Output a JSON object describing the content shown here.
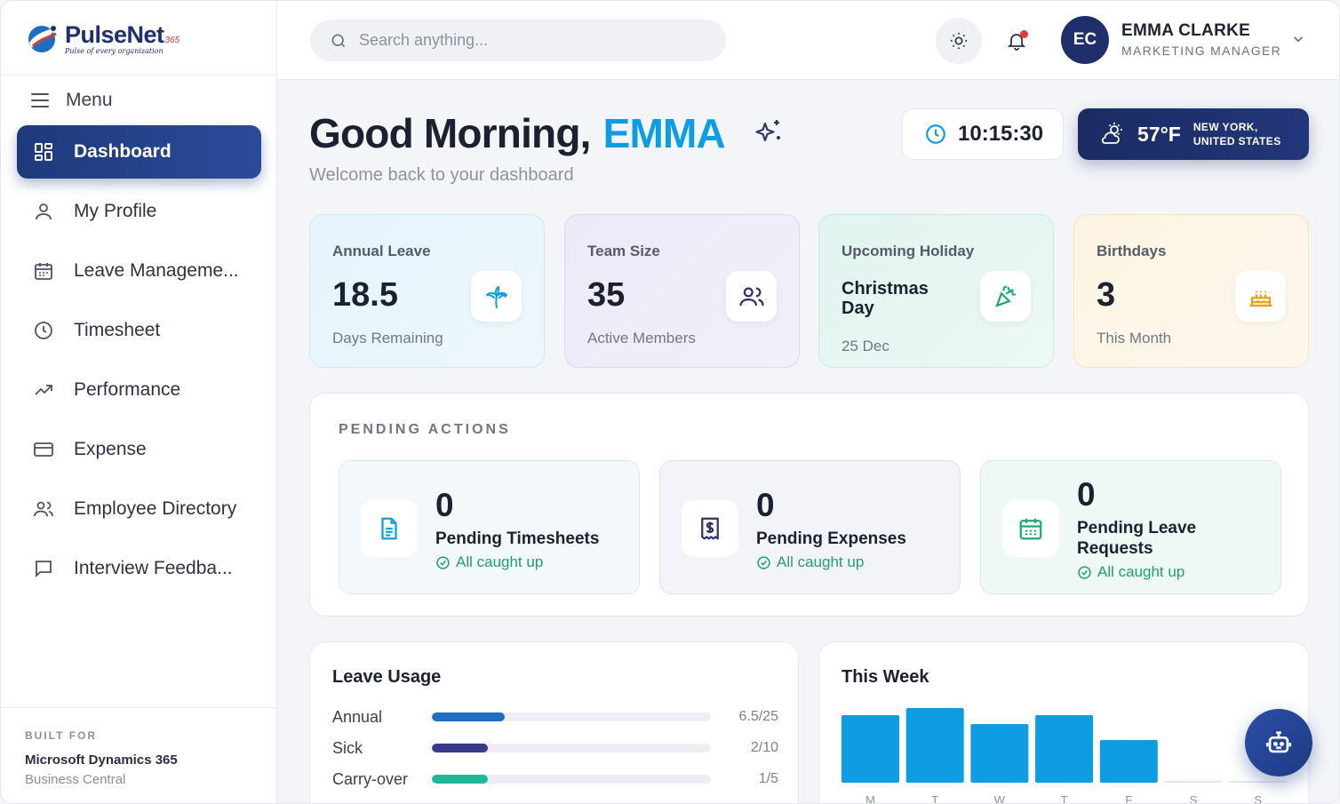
{
  "brand": {
    "name": "PulseNet",
    "suffix": "365",
    "tagline": "Pulse of every organization"
  },
  "sidebar": {
    "menu_label": "Menu",
    "items": [
      {
        "label": "Dashboard",
        "icon": "grid-icon",
        "active": true
      },
      {
        "label": "My Profile",
        "icon": "user-icon"
      },
      {
        "label": "Leave Manageme...",
        "icon": "calendar-icon"
      },
      {
        "label": "Timesheet",
        "icon": "clock-icon"
      },
      {
        "label": "Performance",
        "icon": "trending-up-icon"
      },
      {
        "label": "Expense",
        "icon": "credit-card-icon"
      },
      {
        "label": "Employee Directory",
        "icon": "users-icon"
      },
      {
        "label": "Interview Feedba...",
        "icon": "message-square-icon"
      }
    ],
    "footer": {
      "built_for": "BUILT FOR",
      "product": "Microsoft Dynamics 365",
      "module": "Business Central"
    }
  },
  "header": {
    "search_placeholder": "Search anything...",
    "user": {
      "initials": "EC",
      "name": "EMMA CLARKE",
      "role": "MARKETING MANAGER"
    }
  },
  "greeting": {
    "prefix": "Good Morning,",
    "name": "EMMA",
    "subtitle": "Welcome back to your dashboard"
  },
  "clock": {
    "time": "10:15:30"
  },
  "weather": {
    "temp": "57°F",
    "city": "NEW YORK,",
    "country": "UNITED STATES"
  },
  "stats": [
    {
      "title": "Annual Leave",
      "value": "18.5",
      "sub": "Days Remaining",
      "icon": "palm-tree-icon",
      "accent": "#0e9de3"
    },
    {
      "title": "Team Size",
      "value": "35",
      "sub": "Active Members",
      "icon": "users-icon",
      "accent": "#2e3566"
    },
    {
      "title": "Upcoming Holiday",
      "value": "Christmas Day",
      "sub": "25 Dec",
      "icon": "party-popper-icon",
      "accent": "#1fa776"
    },
    {
      "title": "Birthdays",
      "value": "3",
      "sub": "This Month",
      "icon": "cake-icon",
      "accent": "#e9a21b"
    }
  ],
  "pending": {
    "title": "PENDING ACTIONS",
    "items": [
      {
        "count": "0",
        "label": "Pending Timesheets",
        "status": "All caught up",
        "icon": "file-text-icon"
      },
      {
        "count": "0",
        "label": "Pending Expenses",
        "status": "All caught up",
        "icon": "receipt-dollar-icon"
      },
      {
        "count": "0",
        "label": "Pending Leave Requests",
        "status": "All caught up",
        "icon": "calendar-days-icon"
      }
    ]
  },
  "leave_usage": {
    "title": "Leave Usage",
    "rows": [
      {
        "name": "Annual",
        "label": "6.5/25",
        "used": 6.5,
        "total": 25,
        "color": "#1e6fc1"
      },
      {
        "name": "Sick",
        "label": "2/10",
        "used": 2,
        "total": 10,
        "color": "#3a3a8c"
      },
      {
        "name": "Carry-over",
        "label": "1/5",
        "used": 1,
        "total": 5,
        "color": "#1fb89a"
      }
    ]
  },
  "chart_data": {
    "type": "bar",
    "title": "This Week",
    "categories": [
      "M",
      "T",
      "W",
      "T",
      "F",
      "S",
      "S"
    ],
    "values": [
      7.6,
      8.4,
      6.6,
      7.6,
      4.8,
      0,
      0
    ],
    "color": "#0e9de3",
    "xlabel": "",
    "ylabel": "",
    "grid": false
  }
}
